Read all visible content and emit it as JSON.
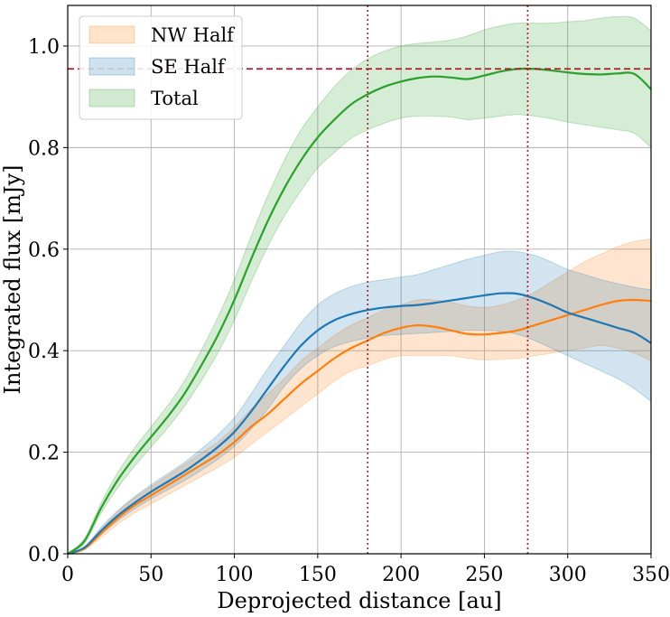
{
  "chart_data": {
    "type": "line",
    "title": "",
    "xlabel": "Deprojected distance [au]",
    "ylabel": "Integrated flux [mJy]",
    "xlim": [
      0,
      350
    ],
    "ylim": [
      0,
      1.08
    ],
    "xticks": [
      0,
      50,
      100,
      150,
      200,
      250,
      300,
      350
    ],
    "yticks": [
      0.0,
      0.2,
      0.4,
      0.6,
      0.8,
      1.0
    ],
    "xtick_labels": [
      "0",
      "50",
      "100",
      "150",
      "200",
      "250",
      "300",
      "350"
    ],
    "ytick_labels": [
      "0.0",
      "0.2",
      "0.4",
      "0.6",
      "0.8",
      "1.0"
    ],
    "grid": true,
    "legend_position": "top-left",
    "series": [
      {
        "name": "NW Half",
        "color": "#ff7f0e",
        "x": [
          0,
          10,
          20,
          30,
          40,
          50,
          60,
          70,
          80,
          90,
          100,
          110,
          120,
          130,
          140,
          150,
          160,
          170,
          180,
          190,
          200,
          210,
          220,
          230,
          240,
          250,
          260,
          270,
          280,
          290,
          300,
          310,
          320,
          330,
          340,
          350
        ],
        "values": [
          0.0,
          0.01,
          0.04,
          0.07,
          0.095,
          0.115,
          0.135,
          0.155,
          0.175,
          0.195,
          0.22,
          0.25,
          0.275,
          0.305,
          0.335,
          0.36,
          0.385,
          0.405,
          0.42,
          0.435,
          0.445,
          0.45,
          0.447,
          0.44,
          0.433,
          0.432,
          0.435,
          0.44,
          0.45,
          0.46,
          0.47,
          0.48,
          0.49,
          0.498,
          0.5,
          0.498
        ],
        "lower": [
          0.0,
          0.008,
          0.032,
          0.058,
          0.08,
          0.098,
          0.116,
          0.134,
          0.152,
          0.17,
          0.19,
          0.215,
          0.24,
          0.265,
          0.29,
          0.315,
          0.34,
          0.36,
          0.37,
          0.383,
          0.39,
          0.39,
          0.39,
          0.39,
          0.385,
          0.382,
          0.383,
          0.385,
          0.39,
          0.395,
          0.4,
          0.405,
          0.41,
          0.405,
          0.395,
          0.38
        ],
        "upper": [
          0.0,
          0.012,
          0.048,
          0.082,
          0.11,
          0.132,
          0.154,
          0.176,
          0.198,
          0.22,
          0.25,
          0.285,
          0.315,
          0.345,
          0.38,
          0.405,
          0.43,
          0.45,
          0.465,
          0.48,
          0.49,
          0.5,
          0.5,
          0.495,
          0.488,
          0.485,
          0.49,
          0.5,
          0.515,
          0.535,
          0.555,
          0.575,
          0.59,
          0.605,
          0.615,
          0.62
        ]
      },
      {
        "name": "SE Half",
        "color": "#1f77b4",
        "x": [
          0,
          10,
          20,
          30,
          40,
          50,
          60,
          70,
          80,
          90,
          100,
          110,
          120,
          130,
          140,
          150,
          160,
          170,
          180,
          190,
          200,
          210,
          220,
          230,
          240,
          250,
          260,
          270,
          280,
          290,
          300,
          310,
          320,
          330,
          340,
          350
        ],
        "values": [
          0.0,
          0.012,
          0.045,
          0.075,
          0.1,
          0.122,
          0.142,
          0.162,
          0.185,
          0.21,
          0.24,
          0.28,
          0.325,
          0.37,
          0.41,
          0.44,
          0.46,
          0.472,
          0.48,
          0.485,
          0.488,
          0.49,
          0.494,
          0.499,
          0.504,
          0.509,
          0.513,
          0.512,
          0.503,
          0.49,
          0.475,
          0.465,
          0.455,
          0.445,
          0.435,
          0.415
        ],
        "lower": [
          0.0,
          0.01,
          0.038,
          0.065,
          0.088,
          0.108,
          0.126,
          0.144,
          0.164,
          0.186,
          0.212,
          0.245,
          0.285,
          0.33,
          0.365,
          0.39,
          0.408,
          0.418,
          0.425,
          0.43,
          0.432,
          0.434,
          0.436,
          0.438,
          0.44,
          0.44,
          0.438,
          0.432,
          0.42,
          0.405,
          0.39,
          0.375,
          0.36,
          0.345,
          0.325,
          0.3
        ],
        "upper": [
          0.0,
          0.014,
          0.052,
          0.085,
          0.112,
          0.136,
          0.158,
          0.18,
          0.206,
          0.234,
          0.268,
          0.315,
          0.365,
          0.41,
          0.455,
          0.49,
          0.512,
          0.526,
          0.535,
          0.54,
          0.545,
          0.55,
          0.56,
          0.57,
          0.58,
          0.588,
          0.595,
          0.595,
          0.588,
          0.575,
          0.56,
          0.55,
          0.54,
          0.532,
          0.525,
          0.52
        ]
      },
      {
        "name": "Total",
        "color": "#2ca02c",
        "x": [
          0,
          10,
          20,
          30,
          40,
          50,
          60,
          70,
          80,
          90,
          100,
          110,
          120,
          130,
          140,
          150,
          160,
          170,
          180,
          190,
          200,
          210,
          220,
          230,
          240,
          250,
          260,
          270,
          280,
          290,
          300,
          310,
          320,
          330,
          340,
          350
        ],
        "values": [
          0.0,
          0.025,
          0.09,
          0.145,
          0.19,
          0.23,
          0.27,
          0.315,
          0.37,
          0.43,
          0.5,
          0.58,
          0.655,
          0.72,
          0.775,
          0.82,
          0.855,
          0.885,
          0.905,
          0.92,
          0.93,
          0.937,
          0.94,
          0.938,
          0.935,
          0.942,
          0.95,
          0.955,
          0.955,
          0.952,
          0.948,
          0.945,
          0.944,
          0.946,
          0.945,
          0.915
        ],
        "lower": [
          0.0,
          0.02,
          0.08,
          0.13,
          0.172,
          0.21,
          0.248,
          0.29,
          0.34,
          0.395,
          0.46,
          0.535,
          0.605,
          0.665,
          0.715,
          0.76,
          0.79,
          0.818,
          0.835,
          0.848,
          0.858,
          0.862,
          0.862,
          0.86,
          0.855,
          0.858,
          0.862,
          0.865,
          0.862,
          0.857,
          0.85,
          0.845,
          0.84,
          0.835,
          0.828,
          0.8
        ],
        "upper": [
          0.0,
          0.03,
          0.1,
          0.16,
          0.208,
          0.25,
          0.292,
          0.34,
          0.4,
          0.465,
          0.54,
          0.625,
          0.705,
          0.775,
          0.835,
          0.88,
          0.92,
          0.952,
          0.975,
          0.99,
          1.0,
          1.005,
          1.008,
          1.012,
          1.02,
          1.032,
          1.04,
          1.045,
          1.045,
          1.045,
          1.048,
          1.05,
          1.055,
          1.058,
          1.055,
          1.03
        ]
      }
    ],
    "annotations": {
      "horizontal_line": {
        "y": 0.955,
        "style": "dashed",
        "color": "#b2182b"
      },
      "vertical_lines": [
        {
          "x": 180,
          "style": "dotted",
          "color": "#b2182b"
        },
        {
          "x": 276,
          "style": "dotted",
          "color": "#b2182b"
        }
      ]
    }
  }
}
